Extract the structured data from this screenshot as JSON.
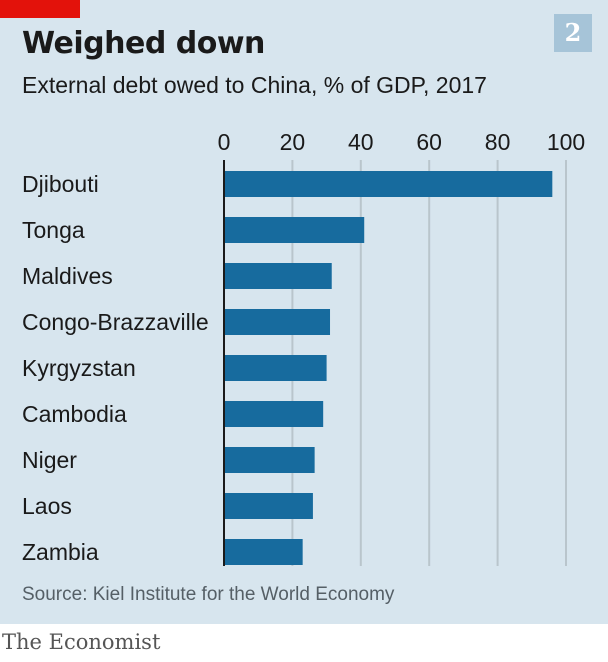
{
  "header": {
    "title": "Weighed down",
    "subtitle": "External debt owed to China, % of GDP, 2017",
    "badge": "2"
  },
  "footer": {
    "source": "Source: Kiel Institute for the World Economy",
    "brand": "The Economist"
  },
  "colors": {
    "background": "#d7e5ee",
    "bar": "#176b9e",
    "brand_red": "#e3120b",
    "gridline": "#b9c5cc",
    "axis": "#1a1a1a"
  },
  "chart_data": {
    "type": "bar",
    "orientation": "horizontal",
    "title": "Weighed down",
    "subtitle": "External debt owed to China, % of GDP, 2017",
    "categories": [
      "Djibouti",
      "Tonga",
      "Maldives",
      "Congo-Brazzaville",
      "Kyrgyzstan",
      "Cambodia",
      "Niger",
      "Laos",
      "Zambia"
    ],
    "values": [
      96,
      41,
      31.5,
      31,
      30,
      29,
      26.5,
      26,
      23
    ],
    "xlim": [
      0,
      100
    ],
    "xticks": [
      "0",
      "20",
      "40",
      "60",
      "80",
      "100"
    ],
    "tick_values": [
      0,
      20,
      40,
      60,
      80,
      100
    ],
    "xaxis_position": "top",
    "grid": true,
    "legend": "none"
  }
}
